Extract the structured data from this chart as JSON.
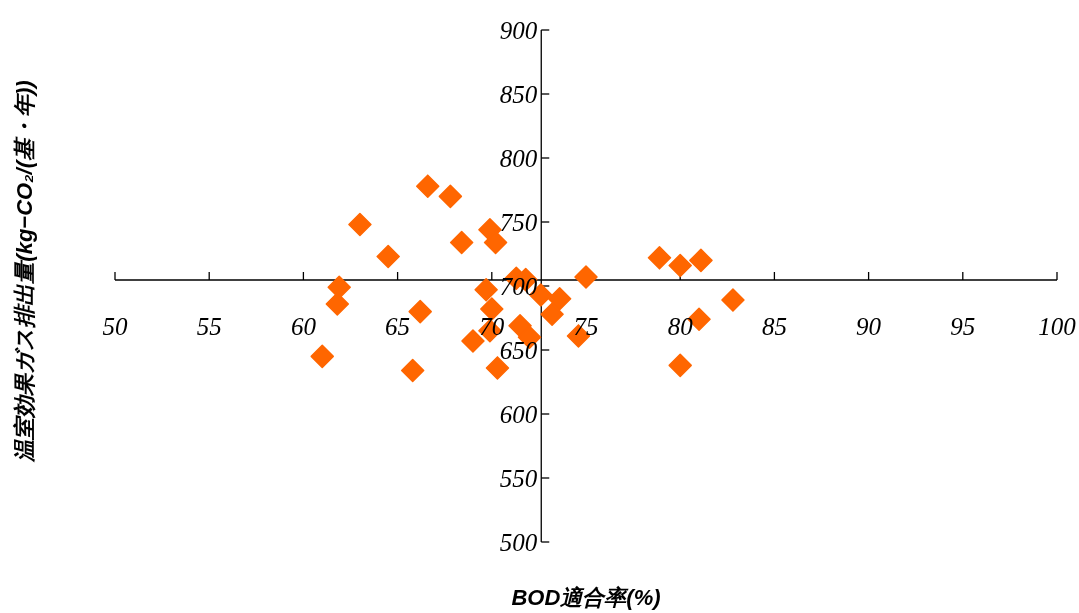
{
  "chart_data": {
    "type": "scatter",
    "xlabel": "BOD適合率(%)",
    "ylabel": "温室効果ガス排出量(kg−CO₂/(基・年))",
    "marker": "diamond",
    "grid": false,
    "xlim": [
      50,
      100
    ],
    "xticks": [
      50,
      55,
      60,
      65,
      70,
      75,
      80,
      85,
      90,
      95,
      100
    ],
    "ylim": [
      500,
      900
    ],
    "yticks": [
      500,
      550,
      600,
      650,
      700,
      750,
      800,
      850,
      900
    ],
    "series": [
      {
        "color": "#ff6600",
        "x": [
          66.6,
          67.8,
          63.0,
          64.5,
          61.9,
          61.8,
          61.0,
          66.2,
          65.8,
          68.4,
          69.9,
          70.2,
          69.7,
          70.0,
          69.9,
          69.0,
          70.3,
          71.3,
          71.8,
          71.5,
          72.0,
          72.6,
          73.6,
          73.2,
          75.0,
          74.6,
          78.9,
          80.0,
          81.1,
          82.8,
          81.0,
          80.0
        ],
        "values": [
          778,
          770,
          748,
          723,
          699,
          686,
          645,
          680,
          634,
          734,
          744,
          734,
          697,
          682,
          665,
          657,
          636,
          706,
          705,
          669,
          660,
          693,
          690,
          678,
          707,
          661,
          722,
          716,
          720,
          689,
          674,
          638
        ]
      }
    ]
  }
}
